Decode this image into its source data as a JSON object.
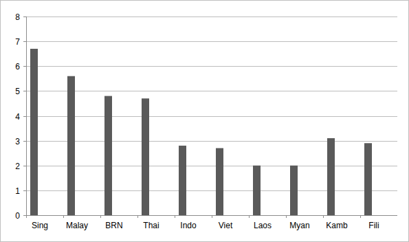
{
  "chart_data": {
    "type": "bar",
    "categories": [
      "Sing",
      "Malay",
      "BRN",
      "Thai",
      "Indo",
      "Viet",
      "Laos",
      "Myan",
      "Kamb",
      "Fili"
    ],
    "values": [
      6.7,
      5.6,
      4.8,
      4.7,
      2.8,
      2.7,
      2.0,
      2.0,
      3.1,
      2.9
    ],
    "color": "#5a5a5a",
    "ylim": [
      0,
      8
    ],
    "yticks": [
      0,
      1,
      2,
      3,
      4,
      5,
      6,
      7,
      8
    ],
    "grid": true
  }
}
